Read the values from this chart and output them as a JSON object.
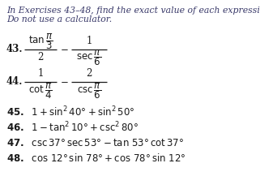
{
  "bg_color": "#ffffff",
  "text_color": "#1a1a1a",
  "title_color": "#3a3a6a",
  "fs_title": 7.8,
  "fs_body": 8.5,
  "fs_num": 8.5,
  "fs_small": 7.5
}
